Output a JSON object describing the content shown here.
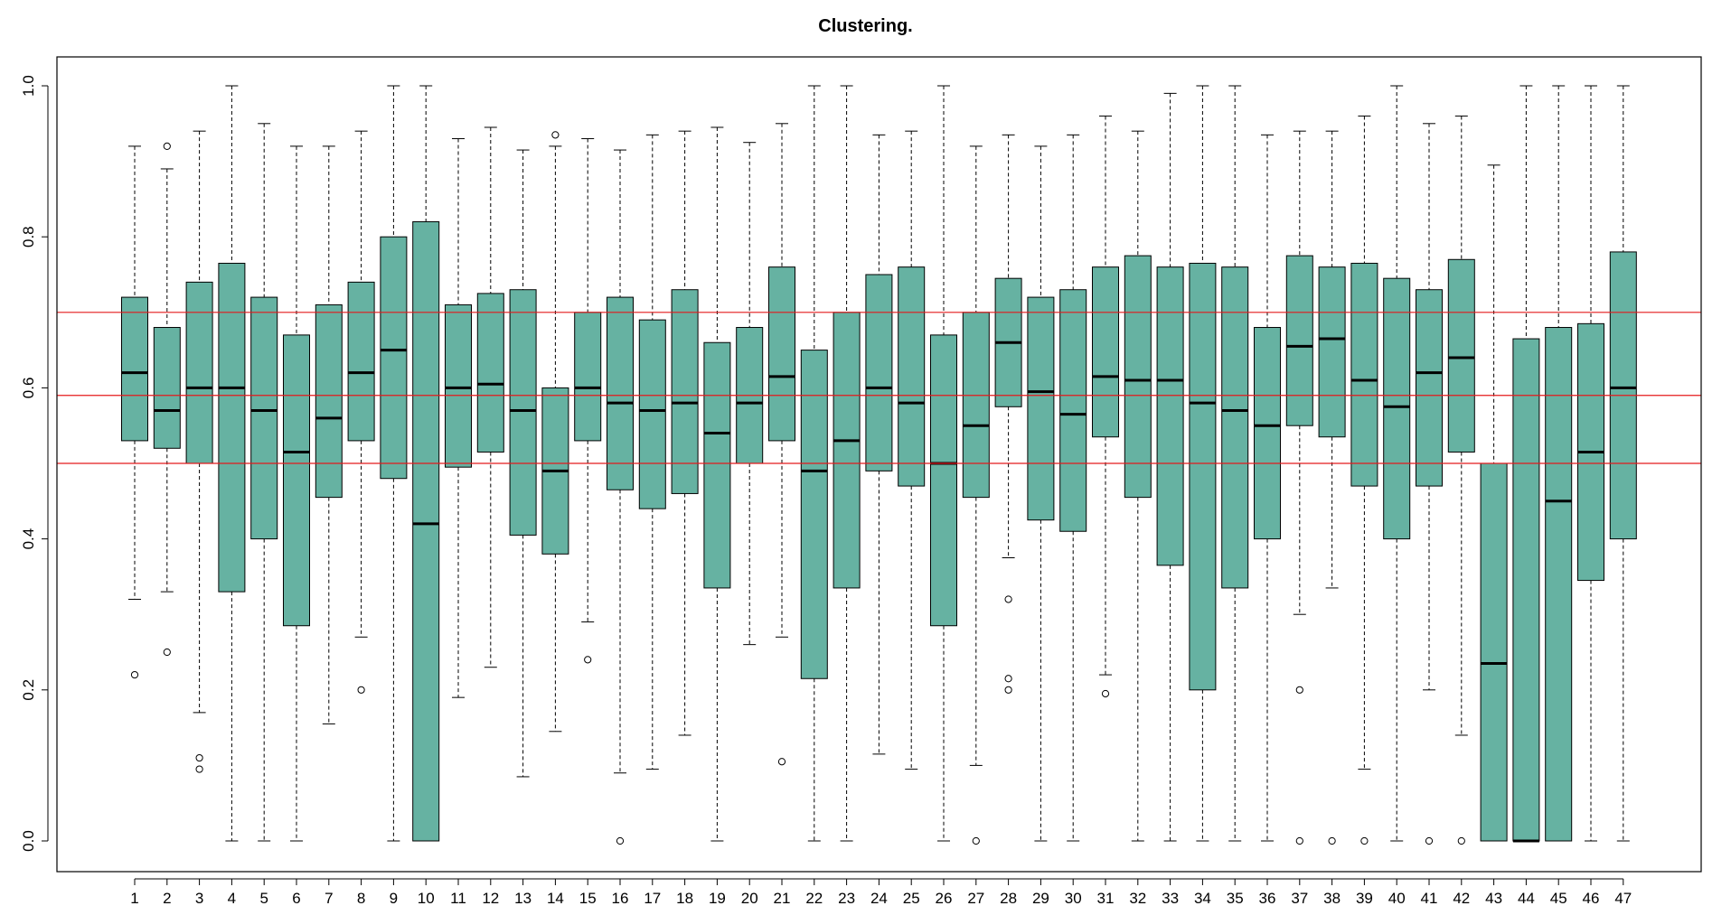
{
  "chart_data": {
    "type": "boxplot",
    "title": "Clustering.",
    "xlabel": "",
    "ylabel": "",
    "ylim": [
      0,
      1
    ],
    "yticks": [
      "0.0",
      "0.2",
      "0.4",
      "0.6",
      "0.8",
      "1.0"
    ],
    "box_color": "#66B2A2",
    "reference_lines": {
      "color": "#E41A1C",
      "values": [
        0.5,
        0.59,
        0.7
      ]
    },
    "grid": false,
    "categories": [
      "1",
      "2",
      "3",
      "4",
      "5",
      "6",
      "7",
      "8",
      "9",
      "10",
      "11",
      "12",
      "13",
      "14",
      "15",
      "16",
      "17",
      "18",
      "19",
      "20",
      "21",
      "22",
      "23",
      "24",
      "25",
      "26",
      "27",
      "28",
      "29",
      "30",
      "31",
      "32",
      "33",
      "34",
      "35",
      "36",
      "37",
      "38",
      "39",
      "40",
      "41",
      "42",
      "43",
      "44",
      "45",
      "46",
      "47"
    ],
    "boxes": [
      {
        "min": 0.32,
        "q1": 0.53,
        "median": 0.62,
        "q3": 0.72,
        "max": 0.92,
        "outliers": [
          0.22
        ]
      },
      {
        "min": 0.33,
        "q1": 0.52,
        "median": 0.57,
        "q3": 0.68,
        "max": 0.89,
        "outliers": [
          0.25,
          0.92
        ]
      },
      {
        "min": 0.17,
        "q1": 0.5,
        "median": 0.6,
        "q3": 0.74,
        "max": 0.94,
        "outliers": [
          0.11,
          0.095
        ]
      },
      {
        "min": 0.0,
        "q1": 0.33,
        "median": 0.6,
        "q3": 0.765,
        "max": 1.0,
        "outliers": []
      },
      {
        "min": 0.0,
        "q1": 0.4,
        "median": 0.57,
        "q3": 0.72,
        "max": 0.95,
        "outliers": []
      },
      {
        "min": 0.0,
        "q1": 0.285,
        "median": 0.515,
        "q3": 0.67,
        "max": 0.92,
        "outliers": []
      },
      {
        "min": 0.155,
        "q1": 0.455,
        "median": 0.56,
        "q3": 0.71,
        "max": 0.92,
        "outliers": []
      },
      {
        "min": 0.27,
        "q1": 0.53,
        "median": 0.62,
        "q3": 0.74,
        "max": 0.94,
        "outliers": [
          0.2
        ]
      },
      {
        "min": 0.0,
        "q1": 0.48,
        "median": 0.65,
        "q3": 0.8,
        "max": 1.0,
        "outliers": []
      },
      {
        "min": 0.0,
        "q1": 0.0,
        "median": 0.42,
        "q3": 0.82,
        "max": 1.0,
        "outliers": []
      },
      {
        "min": 0.19,
        "q1": 0.495,
        "median": 0.6,
        "q3": 0.71,
        "max": 0.93,
        "outliers": []
      },
      {
        "min": 0.23,
        "q1": 0.515,
        "median": 0.605,
        "q3": 0.725,
        "max": 0.945,
        "outliers": []
      },
      {
        "min": 0.085,
        "q1": 0.405,
        "median": 0.57,
        "q3": 0.73,
        "max": 0.915,
        "outliers": []
      },
      {
        "min": 0.145,
        "q1": 0.38,
        "median": 0.49,
        "q3": 0.6,
        "max": 0.92,
        "outliers": [
          0.935
        ]
      },
      {
        "min": 0.29,
        "q1": 0.53,
        "median": 0.6,
        "q3": 0.7,
        "max": 0.93,
        "outliers": [
          0.24
        ]
      },
      {
        "min": 0.09,
        "q1": 0.465,
        "median": 0.58,
        "q3": 0.72,
        "max": 0.915,
        "outliers": [
          0.0
        ]
      },
      {
        "min": 0.095,
        "q1": 0.44,
        "median": 0.57,
        "q3": 0.69,
        "max": 0.935,
        "outliers": []
      },
      {
        "min": 0.14,
        "q1": 0.46,
        "median": 0.58,
        "q3": 0.73,
        "max": 0.94,
        "outliers": []
      },
      {
        "min": 0.0,
        "q1": 0.335,
        "median": 0.54,
        "q3": 0.66,
        "max": 0.945,
        "outliers": []
      },
      {
        "min": 0.26,
        "q1": 0.5,
        "median": 0.58,
        "q3": 0.68,
        "max": 0.925,
        "outliers": []
      },
      {
        "min": 0.27,
        "q1": 0.53,
        "median": 0.615,
        "q3": 0.76,
        "max": 0.95,
        "outliers": [
          0.105
        ]
      },
      {
        "min": 0.0,
        "q1": 0.215,
        "median": 0.49,
        "q3": 0.65,
        "max": 1.0,
        "outliers": []
      },
      {
        "min": 0.0,
        "q1": 0.335,
        "median": 0.53,
        "q3": 0.7,
        "max": 1.0,
        "outliers": []
      },
      {
        "min": 0.115,
        "q1": 0.49,
        "median": 0.6,
        "q3": 0.75,
        "max": 0.935,
        "outliers": []
      },
      {
        "min": 0.095,
        "q1": 0.47,
        "median": 0.58,
        "q3": 0.76,
        "max": 0.94,
        "outliers": []
      },
      {
        "min": 0.0,
        "q1": 0.285,
        "median": 0.5,
        "q3": 0.67,
        "max": 1.0,
        "outliers": []
      },
      {
        "min": 0.1,
        "q1": 0.455,
        "median": 0.55,
        "q3": 0.7,
        "max": 0.92,
        "outliers": [
          0.0
        ]
      },
      {
        "min": 0.375,
        "q1": 0.575,
        "median": 0.66,
        "q3": 0.745,
        "max": 0.935,
        "outliers": [
          0.32,
          0.215,
          0.2
        ]
      },
      {
        "min": 0.0,
        "q1": 0.425,
        "median": 0.595,
        "q3": 0.72,
        "max": 0.92,
        "outliers": []
      },
      {
        "min": 0.0,
        "q1": 0.41,
        "median": 0.565,
        "q3": 0.73,
        "max": 0.935,
        "outliers": []
      },
      {
        "min": 0.22,
        "q1": 0.535,
        "median": 0.615,
        "q3": 0.76,
        "max": 0.96,
        "outliers": [
          0.195
        ]
      },
      {
        "min": 0.0,
        "q1": 0.455,
        "median": 0.61,
        "q3": 0.775,
        "max": 0.94,
        "outliers": []
      },
      {
        "min": 0.0,
        "q1": 0.365,
        "median": 0.61,
        "q3": 0.76,
        "max": 0.99,
        "outliers": []
      },
      {
        "min": 0.0,
        "q1": 0.2,
        "median": 0.58,
        "q3": 0.765,
        "max": 1.0,
        "outliers": []
      },
      {
        "min": 0.0,
        "q1": 0.335,
        "median": 0.57,
        "q3": 0.76,
        "max": 1.0,
        "outliers": []
      },
      {
        "min": 0.0,
        "q1": 0.4,
        "median": 0.55,
        "q3": 0.68,
        "max": 0.935,
        "outliers": []
      },
      {
        "min": 0.3,
        "q1": 0.55,
        "median": 0.655,
        "q3": 0.775,
        "max": 0.94,
        "outliers": [
          0.2,
          0.0
        ]
      },
      {
        "min": 0.335,
        "q1": 0.535,
        "median": 0.665,
        "q3": 0.76,
        "max": 0.94,
        "outliers": [
          0.0
        ]
      },
      {
        "min": 0.095,
        "q1": 0.47,
        "median": 0.61,
        "q3": 0.765,
        "max": 0.96,
        "outliers": [
          0.0
        ]
      },
      {
        "min": 0.0,
        "q1": 0.4,
        "median": 0.575,
        "q3": 0.745,
        "max": 1.0,
        "outliers": []
      },
      {
        "min": 0.2,
        "q1": 0.47,
        "median": 0.62,
        "q3": 0.73,
        "max": 0.95,
        "outliers": [
          0.0
        ]
      },
      {
        "min": 0.14,
        "q1": 0.515,
        "median": 0.64,
        "q3": 0.77,
        "max": 0.96,
        "outliers": [
          0.0
        ]
      },
      {
        "min": 0.0,
        "q1": 0.0,
        "median": 0.235,
        "q3": 0.5,
        "max": 0.895,
        "outliers": []
      },
      {
        "min": 0.0,
        "q1": 0.0,
        "median": 0.0,
        "q3": 0.665,
        "max": 1.0,
        "outliers": []
      },
      {
        "min": 0.0,
        "q1": 0.0,
        "median": 0.45,
        "q3": 0.68,
        "max": 1.0,
        "outliers": []
      },
      {
        "min": 0.0,
        "q1": 0.345,
        "median": 0.515,
        "q3": 0.685,
        "max": 1.0,
        "outliers": []
      },
      {
        "min": 0.0,
        "q1": 0.4,
        "median": 0.6,
        "q3": 0.78,
        "max": 1.0,
        "outliers": []
      }
    ]
  }
}
